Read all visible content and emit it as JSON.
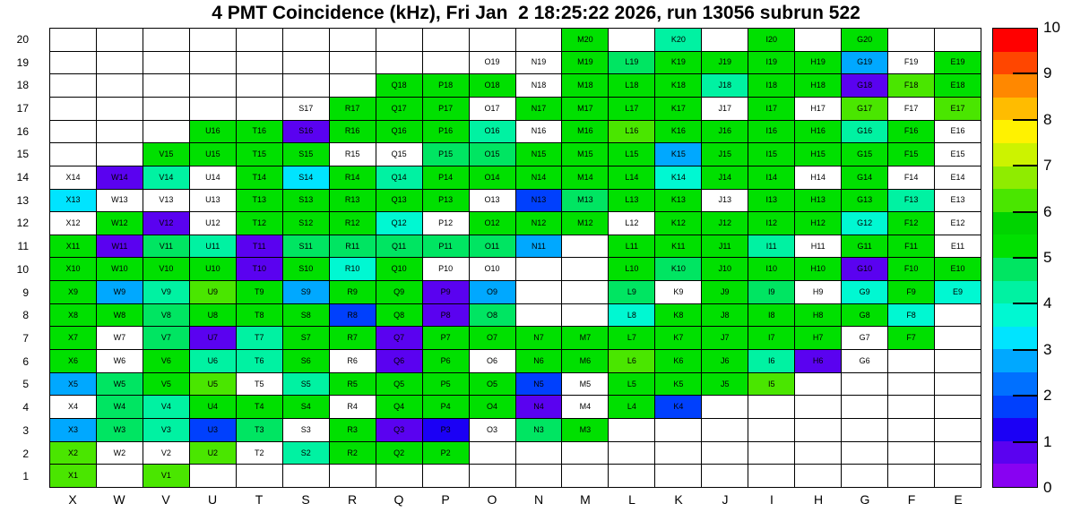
{
  "title": "4 PMT Coincidence (kHz), Fri Jan  2 18:25:22 2026, run 13056 subrun 522",
  "chart_data": {
    "type": "heatmap",
    "title": "4 PMT Coincidence (kHz), Fri Jan  2 18:25:22 2026, run 13056 subrun 522",
    "unit": "kHz",
    "run": "13056",
    "subrun": "522",
    "columns": [
      "X",
      "W",
      "V",
      "U",
      "T",
      "S",
      "R",
      "Q",
      "P",
      "O",
      "N",
      "M",
      "L",
      "K",
      "J",
      "I",
      "H",
      "G",
      "F",
      "E"
    ],
    "rows": [
      20,
      19,
      18,
      17,
      16,
      15,
      14,
      13,
      12,
      11,
      10,
      9,
      8,
      7,
      6,
      5,
      4,
      3,
      2,
      1
    ],
    "vmin": 0,
    "vmax": 10,
    "colorbar_ticks": [
      10,
      9,
      8,
      7,
      6,
      5,
      4,
      3,
      2,
      1,
      0
    ],
    "legend_position": "right",
    "grid": true,
    "palette": [
      "#8802F2",
      "#5A02F0",
      "#1B00F5",
      "#0040FD",
      "#0070FF",
      "#00A8FF",
      "#00E4FF",
      "#00F8D2",
      "#00F2A2",
      "#00E562",
      "#00E000",
      "#00D400",
      "#4AE600",
      "#8FEC00",
      "#CCF300",
      "#FFF200",
      "#FFBC00",
      "#FF8800",
      "#FF4600",
      "#FF0000"
    ],
    "cells": [
      [
        "M",
        20,
        5.4
      ],
      [
        "K",
        20,
        4.2
      ],
      [
        "I",
        20,
        5.4
      ],
      [
        "G",
        20,
        5.4
      ],
      [
        "O",
        19,
        null
      ],
      [
        "N",
        19,
        null
      ],
      [
        "M",
        19,
        5.4
      ],
      [
        "L",
        19,
        4.6
      ],
      [
        "K",
        19,
        5.4
      ],
      [
        "J",
        19,
        5.4
      ],
      [
        "I",
        19,
        5.4
      ],
      [
        "H",
        19,
        5.4
      ],
      [
        "G",
        19,
        2.7
      ],
      [
        "F",
        19,
        null
      ],
      [
        "E",
        19,
        5.4
      ],
      [
        "Q",
        18,
        5.4
      ],
      [
        "P",
        18,
        5.4
      ],
      [
        "O",
        18,
        5.4
      ],
      [
        "N",
        18,
        null
      ],
      [
        "M",
        18,
        5.4
      ],
      [
        "L",
        18,
        5.4
      ],
      [
        "K",
        18,
        5.4
      ],
      [
        "J",
        18,
        4.2
      ],
      [
        "I",
        18,
        5.4
      ],
      [
        "H",
        18,
        5.4
      ],
      [
        "G",
        18,
        0.7
      ],
      [
        "F",
        18,
        6.2
      ],
      [
        "E",
        18,
        5.4
      ],
      [
        "S",
        17,
        null
      ],
      [
        "R",
        17,
        5.4
      ],
      [
        "Q",
        17,
        5.4
      ],
      [
        "P",
        17,
        5.4
      ],
      [
        "O",
        17,
        null
      ],
      [
        "N",
        17,
        5.4
      ],
      [
        "M",
        17,
        5.4
      ],
      [
        "L",
        17,
        5.4
      ],
      [
        "K",
        17,
        5.4
      ],
      [
        "J",
        17,
        null
      ],
      [
        "I",
        17,
        5.4
      ],
      [
        "H",
        17,
        null
      ],
      [
        "G",
        17,
        6.2
      ],
      [
        "F",
        17,
        null
      ],
      [
        "E",
        17,
        6.2
      ],
      [
        "U",
        16,
        5.4
      ],
      [
        "T",
        16,
        5.4
      ],
      [
        "S",
        16,
        0.7
      ],
      [
        "R",
        16,
        5.4
      ],
      [
        "Q",
        16,
        5.4
      ],
      [
        "P",
        16,
        5.4
      ],
      [
        "O",
        16,
        4.2
      ],
      [
        "N",
        16,
        null
      ],
      [
        "M",
        16,
        5.4
      ],
      [
        "L",
        16,
        6.2
      ],
      [
        "K",
        16,
        5.4
      ],
      [
        "J",
        16,
        5.4
      ],
      [
        "I",
        16,
        5.4
      ],
      [
        "H",
        16,
        5.4
      ],
      [
        "G",
        16,
        4.2
      ],
      [
        "F",
        16,
        5.4
      ],
      [
        "E",
        16,
        null
      ],
      [
        "V",
        15,
        5.4
      ],
      [
        "U",
        15,
        5.4
      ],
      [
        "T",
        15,
        5.4
      ],
      [
        "S",
        15,
        5.4
      ],
      [
        "R",
        15,
        null
      ],
      [
        "Q",
        15,
        null
      ],
      [
        "P",
        15,
        4.6
      ],
      [
        "O",
        15,
        4.6
      ],
      [
        "N",
        15,
        5.4
      ],
      [
        "M",
        15,
        5.4
      ],
      [
        "L",
        15,
        5.4
      ],
      [
        "K",
        15,
        2.7
      ],
      [
        "J",
        15,
        5.4
      ],
      [
        "I",
        15,
        5.4
      ],
      [
        "H",
        15,
        5.4
      ],
      [
        "G",
        15,
        5.4
      ],
      [
        "F",
        15,
        5.4
      ],
      [
        "E",
        15,
        null
      ],
      [
        "X",
        14,
        null
      ],
      [
        "W",
        14,
        0.7
      ],
      [
        "V",
        14,
        4.2
      ],
      [
        "U",
        14,
        null
      ],
      [
        "T",
        14,
        5.4
      ],
      [
        "S",
        14,
        3.2
      ],
      [
        "R",
        14,
        5.4
      ],
      [
        "Q",
        14,
        4.2
      ],
      [
        "P",
        14,
        5.4
      ],
      [
        "O",
        14,
        5.4
      ],
      [
        "N",
        14,
        5.4
      ],
      [
        "M",
        14,
        5.4
      ],
      [
        "L",
        14,
        5.4
      ],
      [
        "K",
        14,
        3.7
      ],
      [
        "J",
        14,
        5.4
      ],
      [
        "I",
        14,
        5.4
      ],
      [
        "H",
        14,
        null
      ],
      [
        "G",
        14,
        5.4
      ],
      [
        "F",
        14,
        null
      ],
      [
        "E",
        14,
        null
      ],
      [
        "X",
        13,
        3.2
      ],
      [
        "W",
        13,
        null
      ],
      [
        "V",
        13,
        null
      ],
      [
        "U",
        13,
        null
      ],
      [
        "T",
        13,
        5.4
      ],
      [
        "S",
        13,
        5.4
      ],
      [
        "R",
        13,
        5.4
      ],
      [
        "Q",
        13,
        5.4
      ],
      [
        "P",
        13,
        5.4
      ],
      [
        "O",
        13,
        null
      ],
      [
        "N",
        13,
        1.7
      ],
      [
        "M",
        13,
        4.6
      ],
      [
        "L",
        13,
        5.4
      ],
      [
        "K",
        13,
        5.4
      ],
      [
        "J",
        13,
        null
      ],
      [
        "I",
        13,
        5.4
      ],
      [
        "H",
        13,
        5.4
      ],
      [
        "G",
        13,
        5.4
      ],
      [
        "F",
        13,
        4.2
      ],
      [
        "E",
        13,
        null
      ],
      [
        "X",
        12,
        null
      ],
      [
        "W",
        12,
        5.4
      ],
      [
        "V",
        12,
        0.7
      ],
      [
        "U",
        12,
        null
      ],
      [
        "T",
        12,
        5.4
      ],
      [
        "S",
        12,
        5.4
      ],
      [
        "R",
        12,
        5.4
      ],
      [
        "Q",
        12,
        3.7
      ],
      [
        "P",
        12,
        null
      ],
      [
        "O",
        12,
        5.4
      ],
      [
        "N",
        12,
        5.4
      ],
      [
        "M",
        12,
        5.4
      ],
      [
        "L",
        12,
        null
      ],
      [
        "K",
        12,
        5.4
      ],
      [
        "J",
        12,
        5.4
      ],
      [
        "I",
        12,
        5.4
      ],
      [
        "H",
        12,
        5.4
      ],
      [
        "G",
        12,
        3.7
      ],
      [
        "F",
        12,
        5.4
      ],
      [
        "E",
        12,
        null
      ],
      [
        "X",
        11,
        5.4
      ],
      [
        "W",
        11,
        0.7
      ],
      [
        "V",
        11,
        4.6
      ],
      [
        "U",
        11,
        4.2
      ],
      [
        "T",
        11,
        0.7
      ],
      [
        "S",
        11,
        4.6
      ],
      [
        "R",
        11,
        4.6
      ],
      [
        "Q",
        11,
        4.6
      ],
      [
        "P",
        11,
        4.6
      ],
      [
        "O",
        11,
        4.6
      ],
      [
        "N",
        11,
        2.7
      ],
      [
        "L",
        11,
        5.4
      ],
      [
        "K",
        11,
        5.4
      ],
      [
        "J",
        11,
        5.4
      ],
      [
        "I",
        11,
        4.2
      ],
      [
        "H",
        11,
        null
      ],
      [
        "G",
        11,
        5.4
      ],
      [
        "F",
        11,
        5.4
      ],
      [
        "E",
        11,
        null
      ],
      [
        "X",
        10,
        5.4
      ],
      [
        "W",
        10,
        5.4
      ],
      [
        "V",
        10,
        5.4
      ],
      [
        "U",
        10,
        5.4
      ],
      [
        "T",
        10,
        0.7
      ],
      [
        "S",
        10,
        5.4
      ],
      [
        "R",
        10,
        3.7
      ],
      [
        "Q",
        10,
        5.4
      ],
      [
        "P",
        10,
        null
      ],
      [
        "O",
        10,
        null
      ],
      [
        "L",
        10,
        5.4
      ],
      [
        "K",
        10,
        4.6
      ],
      [
        "J",
        10,
        5.4
      ],
      [
        "I",
        10,
        5.4
      ],
      [
        "H",
        10,
        5.4
      ],
      [
        "G",
        10,
        0.7
      ],
      [
        "F",
        10,
        5.4
      ],
      [
        "E",
        10,
        5.4
      ],
      [
        "X",
        9,
        5.4
      ],
      [
        "W",
        9,
        2.7
      ],
      [
        "V",
        9,
        4.2
      ],
      [
        "U",
        9,
        6.2
      ],
      [
        "T",
        9,
        5.4
      ],
      [
        "S",
        9,
        2.7
      ],
      [
        "R",
        9,
        5.4
      ],
      [
        "Q",
        9,
        5.4
      ],
      [
        "P",
        9,
        0.7
      ],
      [
        "O",
        9,
        2.7
      ],
      [
        "L",
        9,
        4.6
      ],
      [
        "K",
        9,
        null
      ],
      [
        "J",
        9,
        5.4
      ],
      [
        "I",
        9,
        4.6
      ],
      [
        "H",
        9,
        null
      ],
      [
        "G",
        9,
        3.7
      ],
      [
        "F",
        9,
        5.4
      ],
      [
        "E",
        9,
        3.7
      ],
      [
        "X",
        8,
        5.4
      ],
      [
        "W",
        8,
        5.4
      ],
      [
        "V",
        8,
        4.6
      ],
      [
        "U",
        8,
        5.4
      ],
      [
        "T",
        8,
        5.4
      ],
      [
        "S",
        8,
        5.4
      ],
      [
        "R",
        8,
        1.7
      ],
      [
        "Q",
        8,
        5.4
      ],
      [
        "P",
        8,
        0.7
      ],
      [
        "O",
        8,
        4.6
      ],
      [
        "L",
        8,
        3.7
      ],
      [
        "K",
        8,
        5.4
      ],
      [
        "J",
        8,
        5.4
      ],
      [
        "I",
        8,
        5.4
      ],
      [
        "H",
        8,
        5.4
      ],
      [
        "G",
        8,
        5.4
      ],
      [
        "F",
        8,
        3.7
      ],
      [
        "X",
        7,
        5.4
      ],
      [
        "W",
        7,
        null
      ],
      [
        "V",
        7,
        4.6
      ],
      [
        "U",
        7,
        0.7
      ],
      [
        "T",
        7,
        4.2
      ],
      [
        "S",
        7,
        5.4
      ],
      [
        "R",
        7,
        5.4
      ],
      [
        "Q",
        7,
        0.7
      ],
      [
        "P",
        7,
        5.4
      ],
      [
        "O",
        7,
        5.4
      ],
      [
        "N",
        7,
        5.4
      ],
      [
        "M",
        7,
        5.4
      ],
      [
        "L",
        7,
        5.4
      ],
      [
        "K",
        7,
        5.4
      ],
      [
        "J",
        7,
        5.4
      ],
      [
        "I",
        7,
        5.4
      ],
      [
        "H",
        7,
        5.4
      ],
      [
        "G",
        7,
        null
      ],
      [
        "F",
        7,
        5.4
      ],
      [
        "X",
        6,
        5.4
      ],
      [
        "W",
        6,
        null
      ],
      [
        "V",
        6,
        5.4
      ],
      [
        "U",
        6,
        4.2
      ],
      [
        "T",
        6,
        4.2
      ],
      [
        "S",
        6,
        5.4
      ],
      [
        "R",
        6,
        null
      ],
      [
        "Q",
        6,
        0.7
      ],
      [
        "P",
        6,
        5.4
      ],
      [
        "O",
        6,
        null
      ],
      [
        "N",
        6,
        5.4
      ],
      [
        "M",
        6,
        5.4
      ],
      [
        "L",
        6,
        6.2
      ],
      [
        "K",
        6,
        5.4
      ],
      [
        "J",
        6,
        5.4
      ],
      [
        "I",
        6,
        4.2
      ],
      [
        "H",
        6,
        0.7
      ],
      [
        "G",
        6,
        null
      ],
      [
        "X",
        5,
        2.7
      ],
      [
        "W",
        5,
        4.6
      ],
      [
        "V",
        5,
        5.4
      ],
      [
        "U",
        5,
        6.2
      ],
      [
        "T",
        5,
        null
      ],
      [
        "S",
        5,
        4.2
      ],
      [
        "R",
        5,
        5.4
      ],
      [
        "Q",
        5,
        5.4
      ],
      [
        "P",
        5,
        5.4
      ],
      [
        "O",
        5,
        5.4
      ],
      [
        "N",
        5,
        1.7
      ],
      [
        "M",
        5,
        null
      ],
      [
        "L",
        5,
        5.4
      ],
      [
        "K",
        5,
        5.4
      ],
      [
        "J",
        5,
        5.4
      ],
      [
        "I",
        5,
        6.2
      ],
      [
        "X",
        4,
        null
      ],
      [
        "W",
        4,
        4.6
      ],
      [
        "V",
        4,
        4.2
      ],
      [
        "U",
        4,
        5.4
      ],
      [
        "T",
        4,
        5.4
      ],
      [
        "S",
        4,
        5.4
      ],
      [
        "R",
        4,
        null
      ],
      [
        "Q",
        4,
        5.4
      ],
      [
        "P",
        4,
        5.4
      ],
      [
        "O",
        4,
        5.4
      ],
      [
        "N",
        4,
        0.7
      ],
      [
        "M",
        4,
        null
      ],
      [
        "L",
        4,
        5.4
      ],
      [
        "K",
        4,
        1.7
      ],
      [
        "X",
        3,
        2.7
      ],
      [
        "W",
        3,
        4.6
      ],
      [
        "V",
        3,
        4.2
      ],
      [
        "U",
        3,
        1.7
      ],
      [
        "T",
        3,
        4.6
      ],
      [
        "S",
        3,
        null
      ],
      [
        "R",
        3,
        5.4
      ],
      [
        "Q",
        3,
        0.7
      ],
      [
        "P",
        3,
        1.2
      ],
      [
        "O",
        3,
        null
      ],
      [
        "N",
        3,
        4.6
      ],
      [
        "M",
        3,
        5.4
      ],
      [
        "X",
        2,
        6.2
      ],
      [
        "W",
        2,
        null
      ],
      [
        "V",
        2,
        null
      ],
      [
        "U",
        2,
        6.2
      ],
      [
        "T",
        2,
        null
      ],
      [
        "S",
        2,
        4.2
      ],
      [
        "R",
        2,
        5.4
      ],
      [
        "Q",
        2,
        5.4
      ],
      [
        "P",
        2,
        5.4
      ],
      [
        "X",
        1,
        6.2
      ],
      [
        "V",
        1,
        6.2
      ]
    ]
  }
}
